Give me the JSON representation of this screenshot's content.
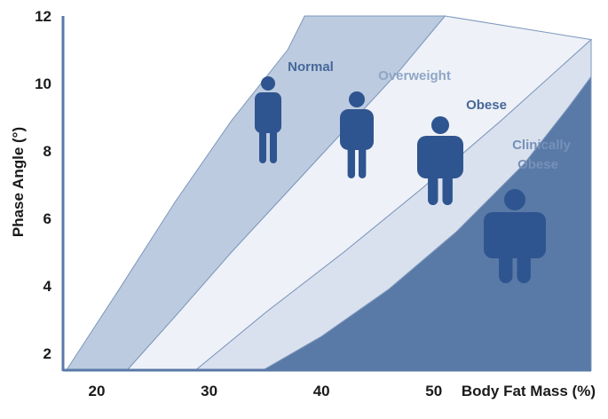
{
  "chart_data": {
    "type": "area",
    "xlabel": "Body Fat Mass (%)",
    "ylabel": "Phase Angle (°)",
    "xlim": [
      17,
      64
    ],
    "ylim": [
      1.5,
      12
    ],
    "x_ticks": [
      20,
      30,
      40,
      50
    ],
    "y_ticks": [
      2,
      4,
      6,
      8,
      10,
      12
    ],
    "boundaries": [
      {
        "points": [
          [
            17.3,
            1.5
          ],
          [
            22,
            3.9
          ],
          [
            27,
            6.5
          ],
          [
            32,
            8.9
          ],
          [
            37,
            11.0
          ],
          [
            38.5,
            12.0
          ]
        ]
      },
      {
        "points": [
          [
            22.7,
            1.5
          ],
          [
            27,
            3.1
          ],
          [
            32,
            5.0
          ],
          [
            37,
            6.8
          ],
          [
            42,
            8.6
          ],
          [
            47,
            10.4
          ],
          [
            51,
            12.0
          ]
        ]
      },
      {
        "points": [
          [
            28.8,
            1.5
          ],
          [
            35,
            3.2
          ],
          [
            42,
            5.0
          ],
          [
            49,
            6.9
          ],
          [
            56,
            8.9
          ],
          [
            62,
            10.7
          ],
          [
            64,
            11.3
          ]
        ]
      },
      {
        "points": [
          [
            34.8,
            1.5
          ],
          [
            40,
            2.5
          ],
          [
            46,
            3.9
          ],
          [
            52,
            5.6
          ],
          [
            58,
            7.6
          ],
          [
            62,
            9.3
          ],
          [
            64,
            10.2
          ]
        ]
      }
    ],
    "zones": [
      {
        "label": "Normal",
        "color": "#bccbdf",
        "text_color": "#46689a",
        "between": [
          0,
          1
        ]
      },
      {
        "label": "Overweight",
        "color": "#eef1f7",
        "text_color": "#8ea6c7",
        "between": [
          1,
          2
        ]
      },
      {
        "label": "Obese",
        "color": "#d9e1ee",
        "text_color": "#46689a",
        "between": [
          2,
          3
        ]
      },
      {
        "label": "Clinically Obese",
        "color": "#5979a7",
        "text_color": "#7691b8",
        "between": [
          3,
          null
        ]
      }
    ],
    "figures": [
      {
        "zone": "Normal",
        "icon": "slim-person-icon"
      },
      {
        "zone": "Overweight",
        "icon": "average-person-icon"
      },
      {
        "zone": "Obese",
        "icon": "heavy-person-icon"
      },
      {
        "zone": "Clinically Obese",
        "icon": "very-heavy-person-icon"
      }
    ],
    "figure_color": "#2f5590",
    "axis_color": "#5979a7"
  }
}
